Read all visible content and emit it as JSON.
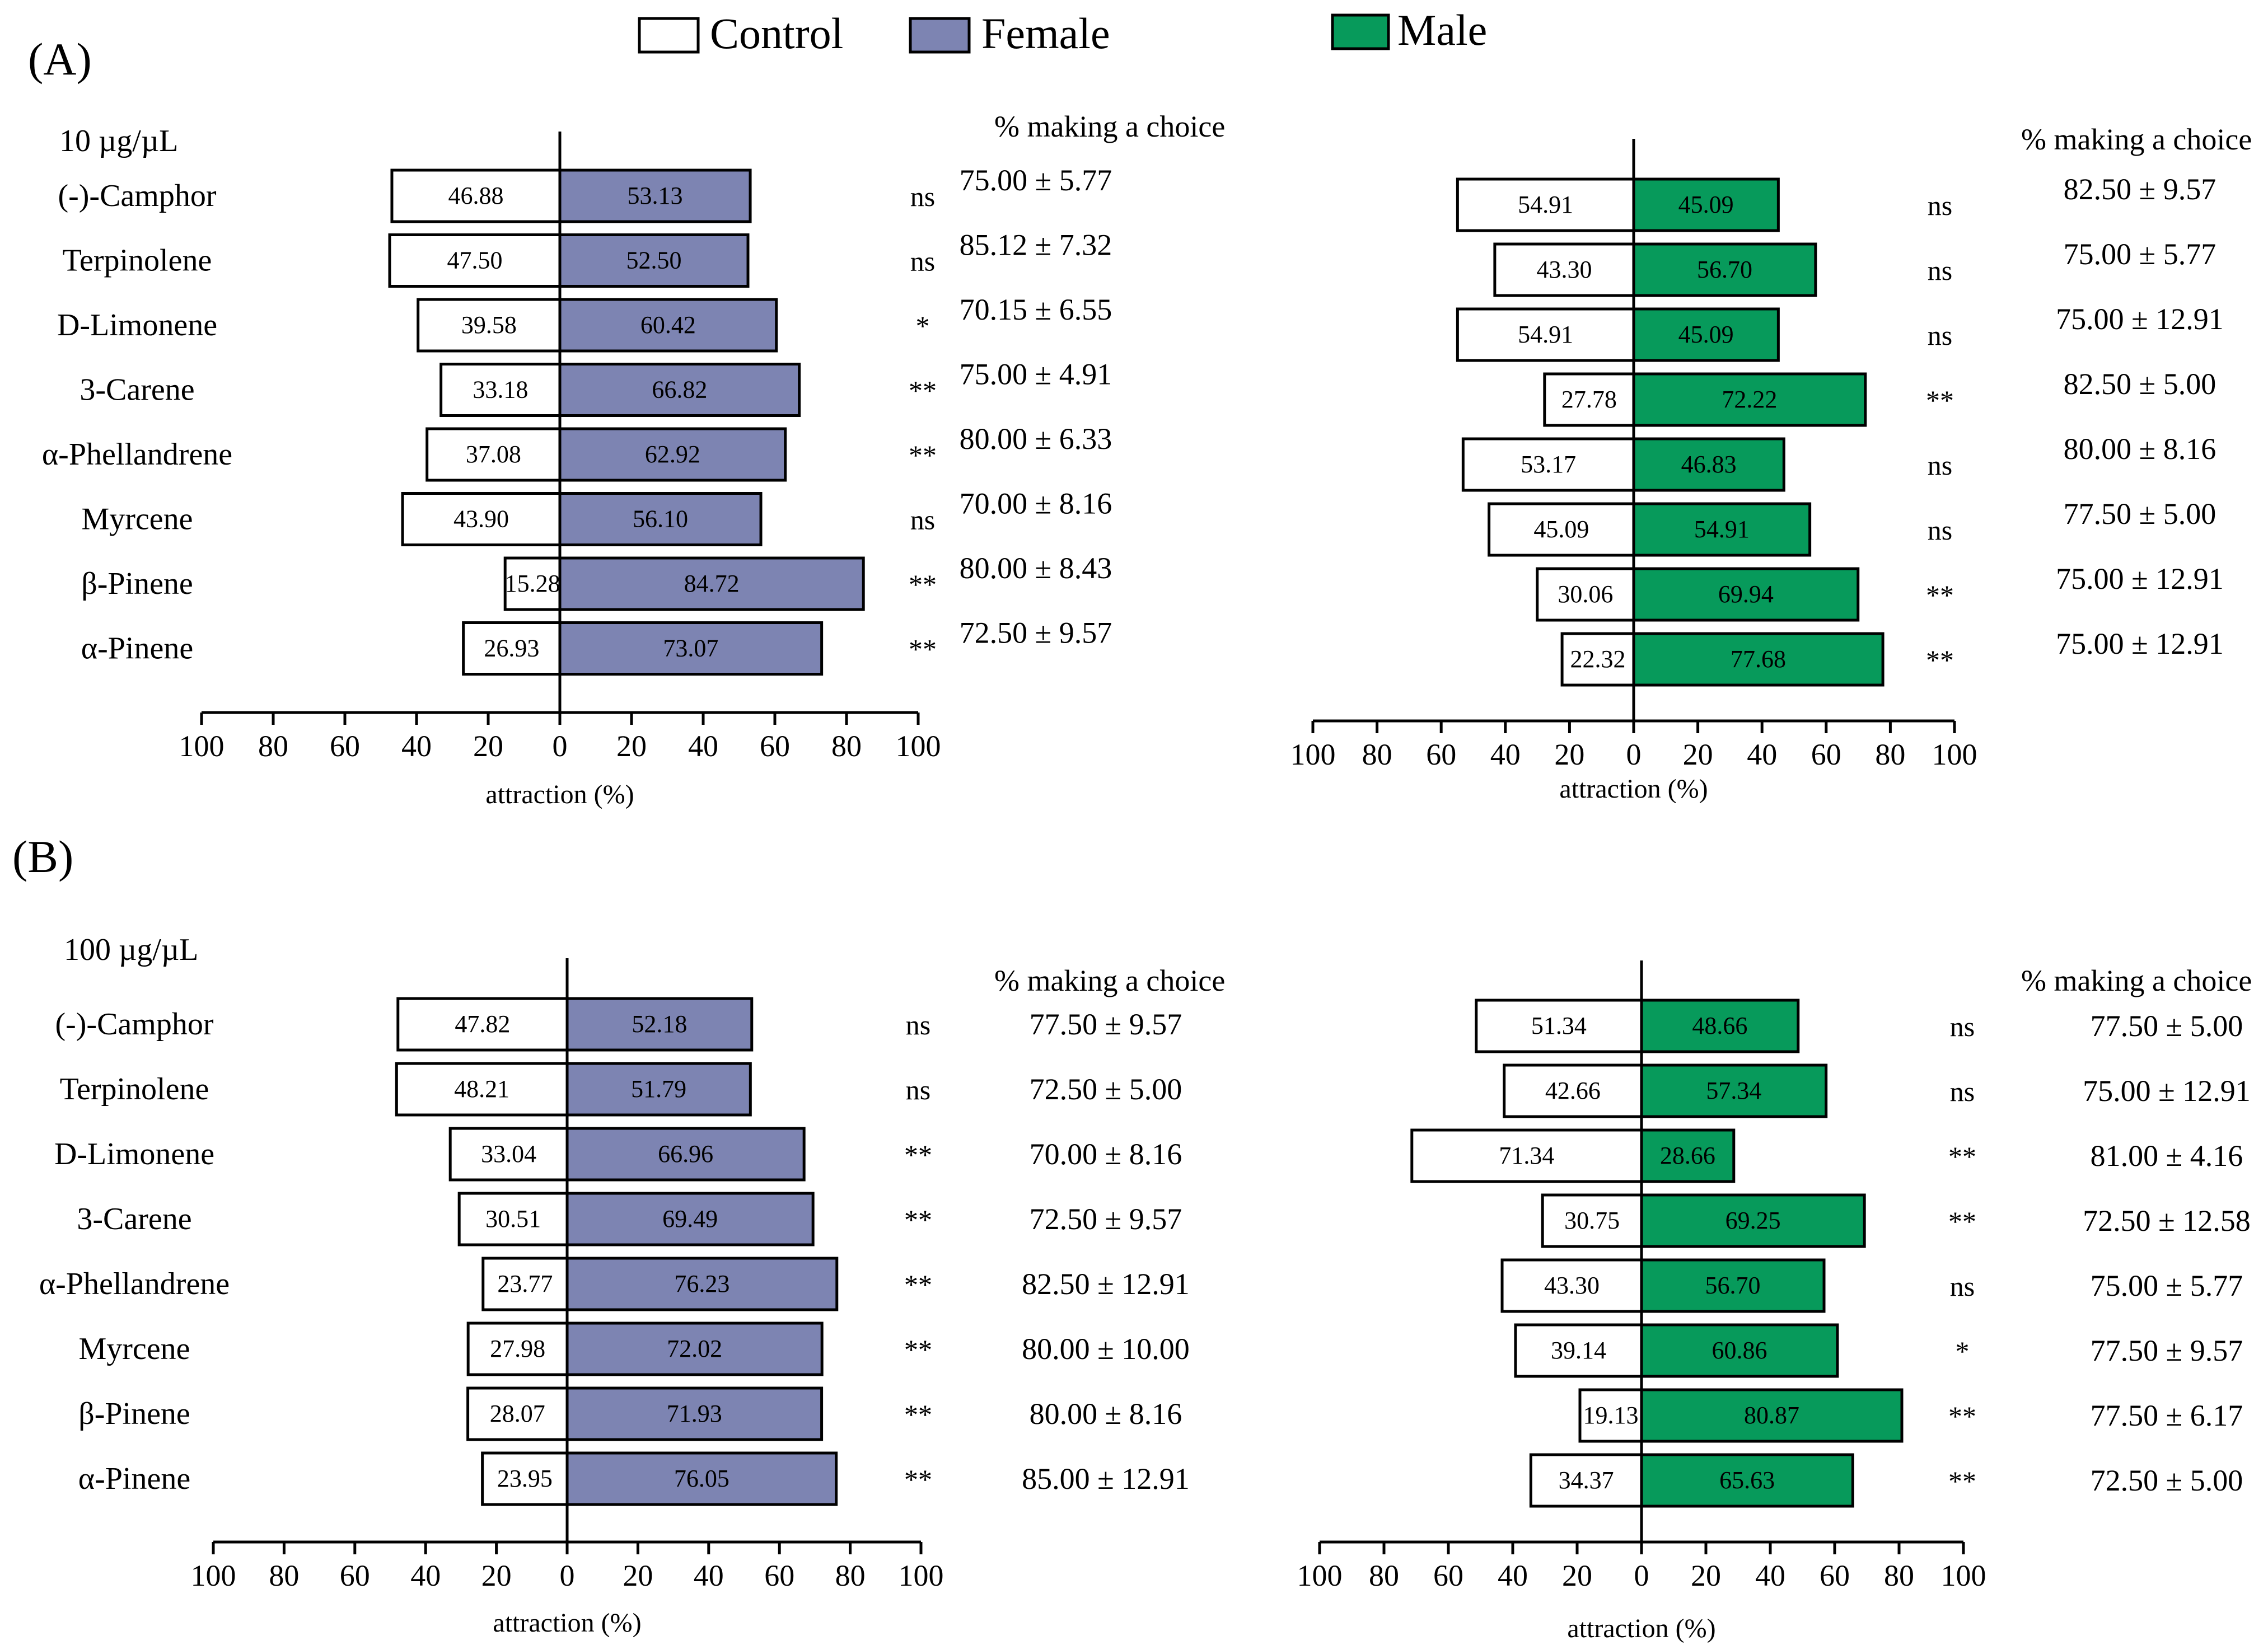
{
  "legend": {
    "items": [
      {
        "label": "Control",
        "color": "#ffffff"
      },
      {
        "label": "Female",
        "color": "#7d84b2"
      },
      {
        "label": "Male",
        "color": "#079a5b"
      }
    ]
  },
  "panels": [
    {
      "label": "(A)",
      "concentration": "10 µg/µL",
      "choice_header": "% making a choice",
      "xlabel": "attraction (%)"
    },
    {
      "label": "(B)",
      "concentration": "100 µg/µL",
      "choice_header": "% making a choice",
      "xlabel": "attraction (%)"
    }
  ],
  "colors": {
    "control": "#ffffff",
    "female": "#7d84b2",
    "male": "#079a5b",
    "stroke": "#000000"
  },
  "chart_data": [
    {
      "type": "bar",
      "title": "(A) 10 µg/µL — Female",
      "orientation": "horizontal-diverging",
      "categories": [
        "(-)-Camphor",
        "Terpinolene",
        "D-Limonene",
        "3-Carene",
        "α-Phellandrene",
        "Myrcene",
        "β-Pinene",
        "α-Pinene"
      ],
      "series": [
        {
          "name": "Control",
          "values": [
            46.88,
            47.5,
            39.58,
            33.18,
            37.08,
            43.9,
            15.28,
            26.93
          ]
        },
        {
          "name": "Female",
          "values": [
            53.13,
            52.5,
            60.42,
            66.82,
            62.92,
            56.1,
            84.72,
            73.07
          ]
        }
      ],
      "significance": [
        "ns",
        "ns",
        "*",
        "**",
        "**",
        "ns",
        "**",
        "**"
      ],
      "percent_making_choice": [
        "75.00 ± 5.77",
        "85.12 ± 7.32",
        "70.15 ± 6.55",
        "75.00 ± 4.91",
        "80.00 ± 6.33",
        "70.00 ± 8.16",
        "80.00 ± 8.43",
        "72.50 ± 9.57"
      ],
      "xlim": [
        -100,
        100
      ],
      "xticks": [
        "100",
        "80",
        "60",
        "40",
        "20",
        "0",
        "20",
        "40",
        "60",
        "80",
        "100"
      ],
      "xlabel": "attraction (%)"
    },
    {
      "type": "bar",
      "title": "(A) 10 µg/µL — Male",
      "orientation": "horizontal-diverging",
      "categories": [
        "(-)-Camphor",
        "Terpinolene",
        "D-Limonene",
        "3-Carene",
        "α-Phellandrene",
        "Myrcene",
        "β-Pinene",
        "α-Pinene"
      ],
      "series": [
        {
          "name": "Control",
          "values": [
            54.91,
            43.3,
            54.91,
            27.78,
            53.17,
            45.09,
            30.06,
            22.32
          ]
        },
        {
          "name": "Male",
          "values": [
            45.09,
            56.7,
            45.09,
            72.22,
            46.83,
            54.91,
            69.94,
            77.68
          ]
        }
      ],
      "significance": [
        "ns",
        "ns",
        "ns",
        "**",
        "ns",
        "ns",
        "**",
        "**"
      ],
      "percent_making_choice": [
        "82.50 ± 9.57",
        "75.00 ± 5.77",
        "75.00 ± 12.91",
        "82.50 ± 5.00",
        "80.00 ± 8.16",
        "77.50 ± 5.00",
        "75.00 ± 12.91",
        "75.00 ± 12.91"
      ],
      "xlim": [
        -100,
        100
      ],
      "xticks": [
        "100",
        "80",
        "60",
        "40",
        "20",
        "0",
        "20",
        "40",
        "60",
        "80",
        "100"
      ],
      "xlabel": "attraction (%)"
    },
    {
      "type": "bar",
      "title": "(B) 100 µg/µL — Female",
      "orientation": "horizontal-diverging",
      "categories": [
        "(-)-Camphor",
        "Terpinolene",
        "D-Limonene",
        "3-Carene",
        "α-Phellandrene",
        "Myrcene",
        "β-Pinene",
        "α-Pinene"
      ],
      "series": [
        {
          "name": "Control",
          "values": [
            47.82,
            48.21,
            33.04,
            30.51,
            23.77,
            27.98,
            28.07,
            23.95
          ]
        },
        {
          "name": "Female",
          "values": [
            52.18,
            51.79,
            66.96,
            69.49,
            76.23,
            72.02,
            71.93,
            76.05
          ]
        }
      ],
      "significance": [
        "ns",
        "ns",
        "**",
        "**",
        "**",
        "**",
        "**",
        "**"
      ],
      "percent_making_choice": [
        "77.50 ± 9.57",
        "72.50 ± 5.00",
        "70.00 ± 8.16",
        "72.50 ± 9.57",
        "82.50 ± 12.91",
        "80.00 ± 10.00",
        "80.00 ± 8.16",
        "85.00 ± 12.91"
      ],
      "xlim": [
        -100,
        100
      ],
      "xticks": [
        "100",
        "80",
        "60",
        "40",
        "20",
        "0",
        "20",
        "40",
        "60",
        "80",
        "100"
      ],
      "xlabel": "attraction (%)"
    },
    {
      "type": "bar",
      "title": "(B) 100 µg/µL — Male",
      "orientation": "horizontal-diverging",
      "categories": [
        "(-)-Camphor",
        "Terpinolene",
        "D-Limonene",
        "3-Carene",
        "α-Phellandrene",
        "Myrcene",
        "β-Pinene",
        "α-Pinene"
      ],
      "series": [
        {
          "name": "Control",
          "values": [
            51.34,
            42.66,
            71.34,
            30.75,
            43.3,
            39.14,
            19.13,
            34.37
          ]
        },
        {
          "name": "Male",
          "values": [
            48.66,
            57.34,
            28.66,
            69.25,
            56.7,
            60.86,
            80.87,
            65.63
          ]
        }
      ],
      "significance": [
        "ns",
        "ns",
        "**",
        "**",
        "ns",
        "*",
        "**",
        "**"
      ],
      "percent_making_choice": [
        "77.50 ± 5.00",
        "75.00 ± 12.91",
        "81.00 ± 4.16",
        "72.50 ± 12.58",
        "75.00 ± 5.77",
        "77.50 ± 9.57",
        "77.50 ± 6.17",
        "72.50 ± 5.00"
      ],
      "xlim": [
        -100,
        100
      ],
      "xticks": [
        "100",
        "80",
        "60",
        "40",
        "20",
        "0",
        "20",
        "40",
        "60",
        "80",
        "100"
      ],
      "xlabel": "attraction (%)"
    }
  ]
}
